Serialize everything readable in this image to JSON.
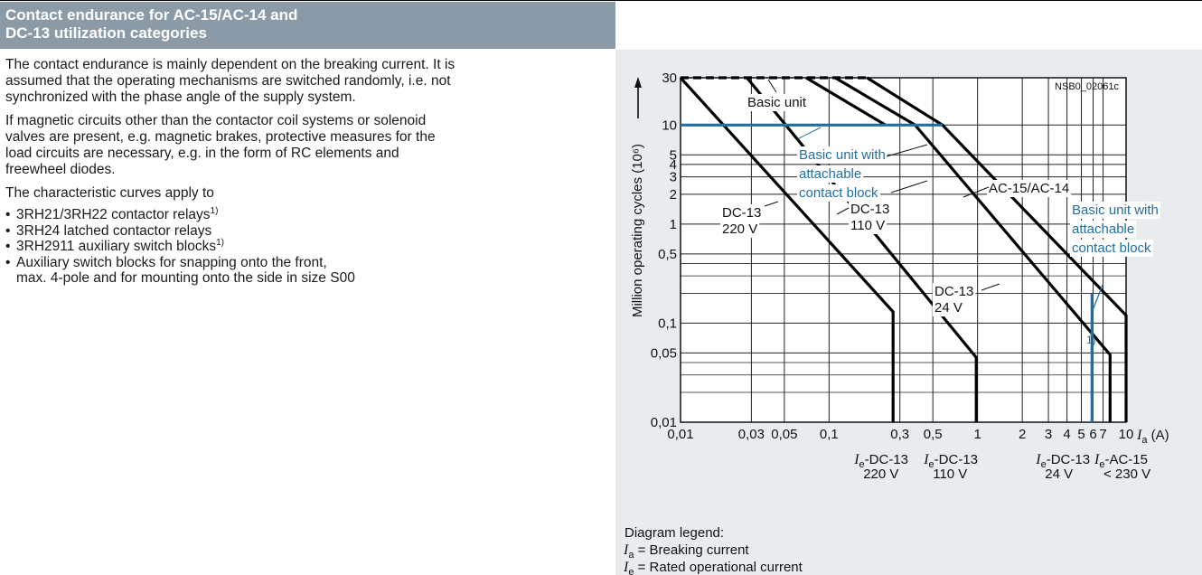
{
  "section": {
    "title": "Contact endurance for AC-15/AC-14 and\nDC-13 utilization categories"
  },
  "body": {
    "para1": "The contact endurance is mainly dependent on the breaking current. It is\nassumed that the operating mechanisms are switched randomly, i.e. not\nsynchronized with the phase angle of the supply system.",
    "para2": "If magnetic circuits other than the contactor coil systems or solenoid\nvalves are present, e.g. magnetic brakes, protective measures for the\nload circuits are necessary, e.g. in the form of RC elements and\nfreewheel diodes.",
    "para3": "The characteristic curves apply to",
    "bullets": [
      {
        "text": "3RH21/3RH22 contactor relays",
        "sup": "1)"
      },
      {
        "text": "3RH24 latched contactor relays",
        "sup": ""
      },
      {
        "text": "3RH2911 auxiliary switch blocks",
        "sup": "1)"
      },
      {
        "text": "Auxiliary switch blocks for snapping onto the front,\nmax. 4-pole and for mounting onto the side in size S00",
        "sup": ""
      }
    ]
  },
  "chart_data": {
    "type": "line",
    "figure_id": "NSB0_02061c",
    "ylabel": "Million operating cycles (10⁶)",
    "xlabel": "I_a (A)",
    "x_scale": "log",
    "y_scale": "log",
    "xlim": [
      0.01,
      10
    ],
    "ylim": [
      0.01,
      30
    ],
    "grid": true,
    "x_ticks": [
      {
        "value": 0.01,
        "label": "0,01"
      },
      {
        "value": 0.03,
        "label": "0,03"
      },
      {
        "value": 0.05,
        "label": "0,05"
      },
      {
        "value": 0.1,
        "label": "0,1"
      },
      {
        "value": 0.3,
        "label": "0,3"
      },
      {
        "value": 0.5,
        "label": "0,5"
      },
      {
        "value": 1,
        "label": "1"
      },
      {
        "value": 2,
        "label": "2"
      },
      {
        "value": 3,
        "label": "3"
      },
      {
        "value": 4,
        "label": "4"
      },
      {
        "value": 5,
        "label": "5"
      },
      {
        "value": 6,
        "label": "6"
      },
      {
        "value": 7,
        "label": "7"
      },
      {
        "value": 10,
        "label": "10"
      }
    ],
    "y_ticks": [
      {
        "value": 30,
        "label": "30"
      },
      {
        "value": 10,
        "label": "10"
      },
      {
        "value": 5,
        "label": "5"
      },
      {
        "value": 4,
        "label": "4"
      },
      {
        "value": 3,
        "label": "3"
      },
      {
        "value": 2,
        "label": "2"
      },
      {
        "value": 1,
        "label": "1"
      },
      {
        "value": 0.5,
        "label": "0,5"
      },
      {
        "value": 0.1,
        "label": "0,1"
      },
      {
        "value": 0.05,
        "label": "0,05"
      },
      {
        "value": 0.01,
        "label": "0,01"
      }
    ],
    "series": [
      {
        "name": "DC-13 220 V",
        "style": "black-thick",
        "points": [
          [
            0.01,
            30
          ],
          [
            0.27,
            0.13
          ],
          [
            0.27,
            0.01
          ]
        ]
      },
      {
        "name": "DC-13 110 V",
        "style": "black-thick",
        "points": [
          [
            0.028,
            30
          ],
          [
            0.98,
            0.045
          ],
          [
            0.98,
            0.01
          ]
        ]
      },
      {
        "name": "DC-13 24 V",
        "style": "black-thick",
        "points": [
          [
            0.07,
            30
          ],
          [
            0.24,
            10
          ]
        ]
      },
      {
        "name": "DC-13 24 V",
        "style": "black-thick",
        "points": [
          [
            0.11,
            30
          ],
          [
            0.38,
            10
          ],
          [
            7.8,
            0.048
          ],
          [
            7.8,
            0.01
          ]
        ]
      },
      {
        "name": "AC-15/AC-14",
        "style": "black-thick",
        "points": [
          [
            0.18,
            30
          ],
          [
            0.58,
            10
          ],
          [
            10,
            0.12
          ],
          [
            10,
            0.01
          ]
        ]
      },
      {
        "name": "Basic unit",
        "style": "black-dashed",
        "points": [
          [
            0.01,
            30
          ],
          [
            0.18,
            30
          ]
        ]
      },
      {
        "name": "Basic unit with attachable contact block",
        "style": "blue",
        "points": [
          [
            0.01,
            10
          ],
          [
            0.58,
            10
          ]
        ]
      },
      {
        "name": "Basic unit with attachable contact block",
        "style": "blue",
        "points": [
          [
            5.9,
            0.2
          ],
          [
            5.9,
            0.01
          ]
        ]
      }
    ],
    "annotations": [
      {
        "text": "Basic unit",
        "color": "#000000"
      },
      {
        "text": "Basic unit with\nattachable\ncontact block",
        "color": "#1f6fa0"
      },
      {
        "text": "AC-15/AC-14",
        "color": "#000000"
      },
      {
        "text": "Basic unit with\nattachable\ncontact block",
        "color": "#1f6fa0"
      },
      {
        "text": "DC-13\n220 V",
        "color": "#000000"
      },
      {
        "text": "DC-13\n110 V",
        "color": "#000000"
      },
      {
        "text": "DC-13\n24 V",
        "color": "#000000"
      },
      {
        "text": "1)",
        "color": "#1f6fa0"
      }
    ],
    "x_current_labels": [
      {
        "main": "I",
        "sub": "e",
        "rest": "-DC-13",
        "line2": "220 V"
      },
      {
        "main": "I",
        "sub": "e",
        "rest": "-DC-13",
        "line2": "110 V"
      },
      {
        "main": "I",
        "sub": "e",
        "rest": "-DC-13",
        "line2": "24 V"
      },
      {
        "main": "I",
        "sub": "e",
        "rest": "-AC-15",
        "line2": "< 230 V"
      }
    ],
    "axis_unit": {
      "main": "I",
      "sub": "a",
      "rest": " (A)"
    },
    "legend": {
      "title": "Diagram legend:",
      "items": [
        {
          "main": "I",
          "sub": "a",
          "rest": " = Breaking current"
        },
        {
          "main": "I",
          "sub": "e",
          "rest": " = Rated operational current"
        }
      ]
    },
    "colors": {
      "line": "#000000",
      "accent": "#1f6fa0",
      "panel": "#e8ecef",
      "plot": "#ffffff"
    }
  }
}
